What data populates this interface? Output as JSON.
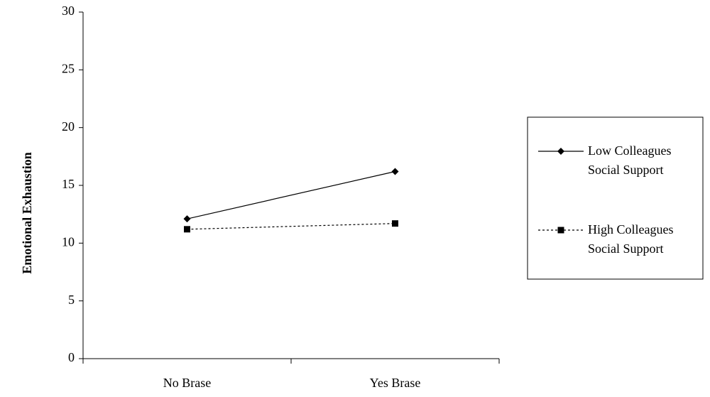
{
  "chart_data": {
    "type": "line",
    "y_label": "Emotional Exhaustion",
    "categories": [
      "No Brase",
      "Yes Brase"
    ],
    "series": [
      {
        "name": "Low Colleagues Social Support",
        "color": "#000000",
        "marker": "diamond",
        "line_style": "solid",
        "values": [
          12.1,
          16.2
        ]
      },
      {
        "name": "High Colleagues Social Support",
        "color": "#000000",
        "marker": "square",
        "line_style": "dashed",
        "values": [
          11.2,
          11.7
        ]
      }
    ],
    "ylim": [
      0,
      30
    ],
    "yticks": [
      0,
      5,
      10,
      15,
      20,
      25,
      30
    ],
    "grid": false,
    "legend": "right"
  }
}
